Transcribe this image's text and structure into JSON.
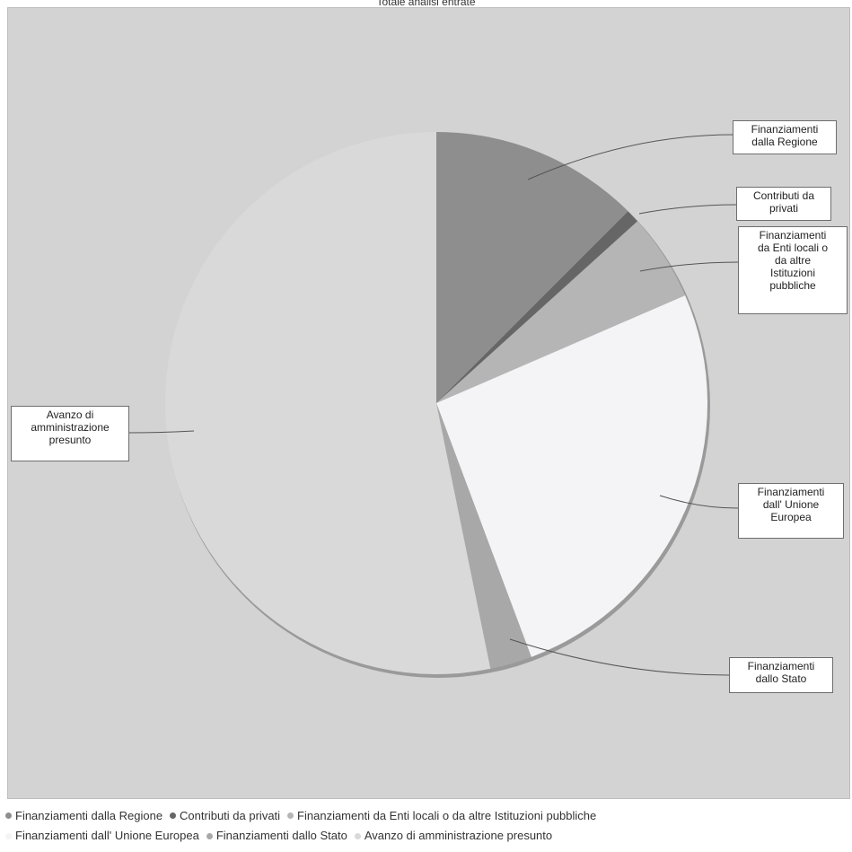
{
  "chart_data": {
    "type": "pie",
    "title": "Totale analisi entrate",
    "slices": [
      {
        "label": "Finanziamenti dalla Regione",
        "value": 12.5,
        "color": "#8e8e8e",
        "callout": "Finanziamenti\ndalla Regione"
      },
      {
        "label": "Contributi da privati",
        "value": 0.8,
        "color": "#666666",
        "callout": "Contributi da\nprivati"
      },
      {
        "label": "Finanziamenti da Enti locali o da altre Istituzioni pubbliche",
        "value": 5.2,
        "color": "#b5b5b5",
        "callout": "Finanziamenti\nda Enti locali o\nda altre\nIstituzioni\npubbliche"
      },
      {
        "label": "Finanziamenti dall' Unione Europea",
        "value": 25.8,
        "color": "#f4f4f6",
        "callout": "Finanziamenti\ndall' Unione\nEuropea"
      },
      {
        "label": "Finanziamenti dallo Stato",
        "value": 2.5,
        "color": "#a8a8a8",
        "callout": "Finanziamenti\ndallo Stato"
      },
      {
        "label": "Avanzo di amministrazione presunto",
        "value": 53.2,
        "color": "#d9d9d9",
        "callout": "Avanzo di\namministrazione\npresunto"
      }
    ],
    "legend": [
      {
        "label": "Finanziamenti dalla Regione",
        "color": "#8e8e8e"
      },
      {
        "label": "Contributi da privati",
        "color": "#666666"
      },
      {
        "label": "Finanziamenti da Enti locali o da altre Istituzioni pubbliche",
        "color": "#b5b5b5"
      },
      {
        "label": "Finanziamenti dall' Unione Europea",
        "color": "#f4f4f6"
      },
      {
        "label": "Finanziamenti dallo Stato",
        "color": "#a8a8a8"
      },
      {
        "label": "Avanzo di amministrazione presunto",
        "color": "#d9d9d9"
      }
    ],
    "legend_position": "bottom"
  }
}
